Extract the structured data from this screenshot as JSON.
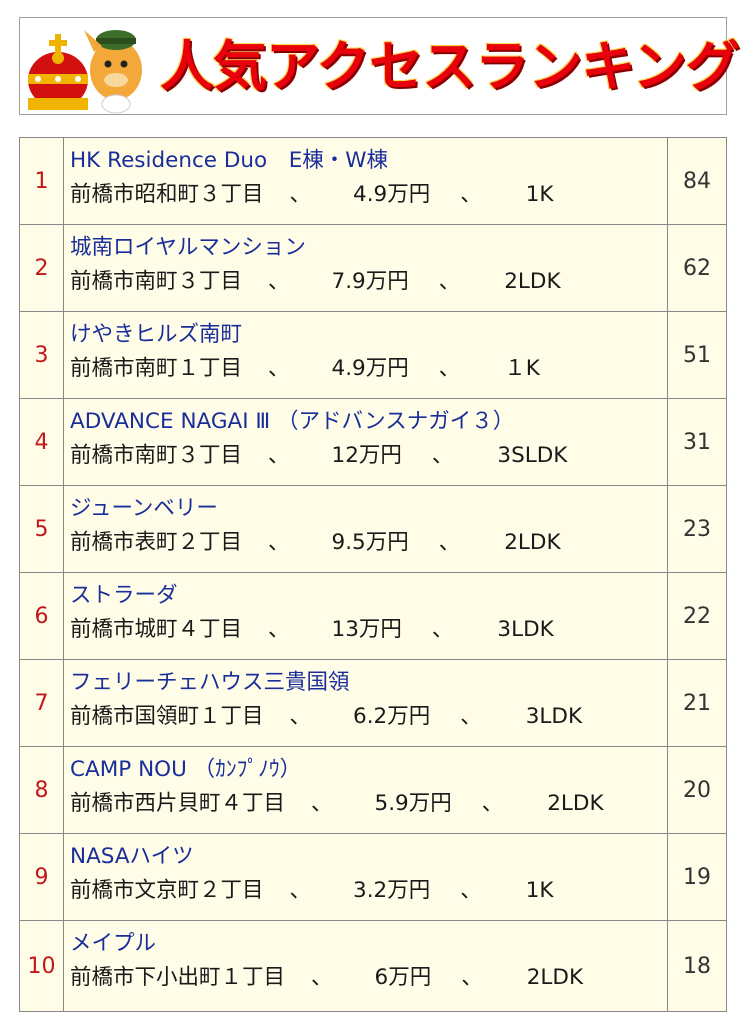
{
  "banner": {
    "title": "人気アクセスランキング",
    "mascot_icon": "crowned-horse-mascot",
    "colors": {
      "title": "#e8000c",
      "crown": "#d21010",
      "gold": "#f0b400"
    }
  },
  "ranking": {
    "colors": {
      "rank": "#c01818",
      "name": "#1a2e9a",
      "row_bg": "#fffde8"
    },
    "rows": [
      {
        "rank": "1",
        "name": "HK Residence Duo　E棟・W棟",
        "address": "前橋市昭和町３丁目",
        "sep1": "、",
        "price": "4.9万円",
        "sep2": "、",
        "layout": "1K",
        "count": "84"
      },
      {
        "rank": "2",
        "name": "城南ロイヤルマンション",
        "address": "前橋市南町３丁目",
        "sep1": "、",
        "price": "7.9万円",
        "sep2": "、",
        "layout": "2LDK",
        "count": "62"
      },
      {
        "rank": "3",
        "name": "けやきヒルズ南町",
        "address": "前橋市南町１丁目",
        "sep1": "、",
        "price": "4.9万円",
        "sep2": "、",
        "layout": "１K",
        "count": "51"
      },
      {
        "rank": "4",
        "name": "ADVANCE NAGAI Ⅲ （アドバンスナガイ３）",
        "address": "前橋市南町３丁目",
        "sep1": "、",
        "price": "12万円",
        "sep2": "、",
        "layout": "3SLDK",
        "count": "31"
      },
      {
        "rank": "5",
        "name": "ジューンベリー",
        "address": "前橋市表町２丁目",
        "sep1": "、",
        "price": "9.5万円",
        "sep2": "、",
        "layout": "2LDK",
        "count": "23"
      },
      {
        "rank": "6",
        "name": "ストラーダ",
        "address": "前橋市城町４丁目",
        "sep1": "、",
        "price": "13万円",
        "sep2": "、",
        "layout": "3LDK",
        "count": "22"
      },
      {
        "rank": "7",
        "name": "フェリーチェハウス三貴国領",
        "address": "前橋市国領町１丁目",
        "sep1": "、",
        "price": "6.2万円",
        "sep2": "、",
        "layout": "3LDK",
        "count": "21"
      },
      {
        "rank": "8",
        "name": "CAMP NOU （ｶﾝﾌﾟﾉｳ）",
        "address": "前橋市西片貝町４丁目",
        "sep1": "、",
        "price": "5.9万円",
        "sep2": "、",
        "layout": "2LDK",
        "count": "20"
      },
      {
        "rank": "9",
        "name": "NASAハイツ",
        "address": "前橋市文京町２丁目",
        "sep1": "、",
        "price": "3.2万円",
        "sep2": "、",
        "layout": "1K",
        "count": "19"
      },
      {
        "rank": "10",
        "name": "メイプル",
        "address": "前橋市下小出町１丁目",
        "sep1": "、",
        "price": "6万円",
        "sep2": "、",
        "layout": "2LDK",
        "count": "18"
      }
    ]
  }
}
